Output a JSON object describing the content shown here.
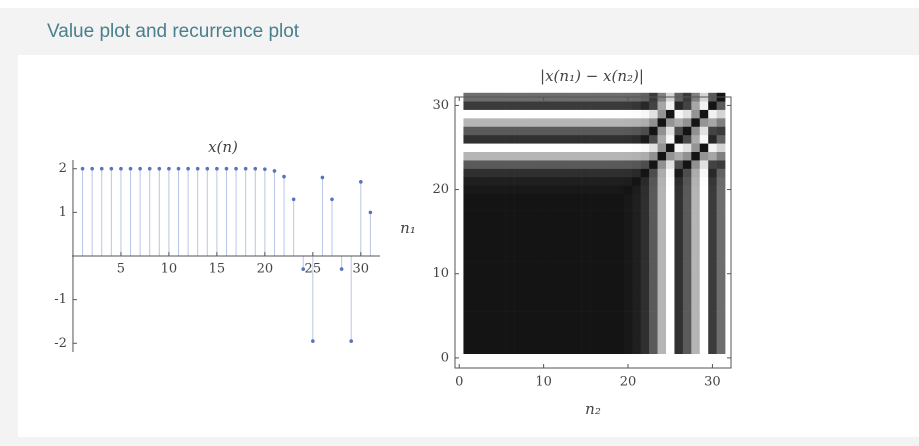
{
  "header": {
    "title": "Value plot and recurrence plot"
  },
  "chart_data": [
    {
      "type": "stem",
      "title": "x(n)",
      "x": [
        1,
        2,
        3,
        4,
        5,
        6,
        7,
        8,
        9,
        10,
        11,
        12,
        13,
        14,
        15,
        16,
        17,
        18,
        19,
        20,
        21,
        22,
        23,
        24,
        25,
        26,
        27,
        28,
        29,
        30,
        31
      ],
      "values": [
        2,
        2,
        2,
        2,
        2,
        2,
        2,
        2,
        2,
        2,
        2,
        2,
        2,
        2,
        2,
        2,
        2,
        2,
        2,
        1.99,
        1.95,
        1.82,
        1.3,
        -0.3,
        -1.95,
        1.8,
        1.3,
        -0.3,
        -1.95,
        1.7,
        1.0
      ],
      "color": "#5574b9",
      "stem_color": "#b9c6e2",
      "xlim": [
        -0.1,
        32
      ],
      "xticks": [
        5,
        10,
        15,
        20,
        25,
        30
      ],
      "ylim": [
        -2.2,
        2.2
      ],
      "yticks": [
        -2,
        -1,
        1,
        2
      ]
    },
    {
      "type": "recurrence",
      "title": "|x(n₁) − x(n₂)|",
      "xlabel": "n₂",
      "ylabel": "n₁",
      "xlim": [
        -0.5,
        32.2
      ],
      "xticks": [
        0,
        10,
        20,
        30
      ],
      "ylim": [
        -1.2,
        31
      ],
      "yticks": [
        0,
        10,
        20,
        30
      ]
    }
  ]
}
